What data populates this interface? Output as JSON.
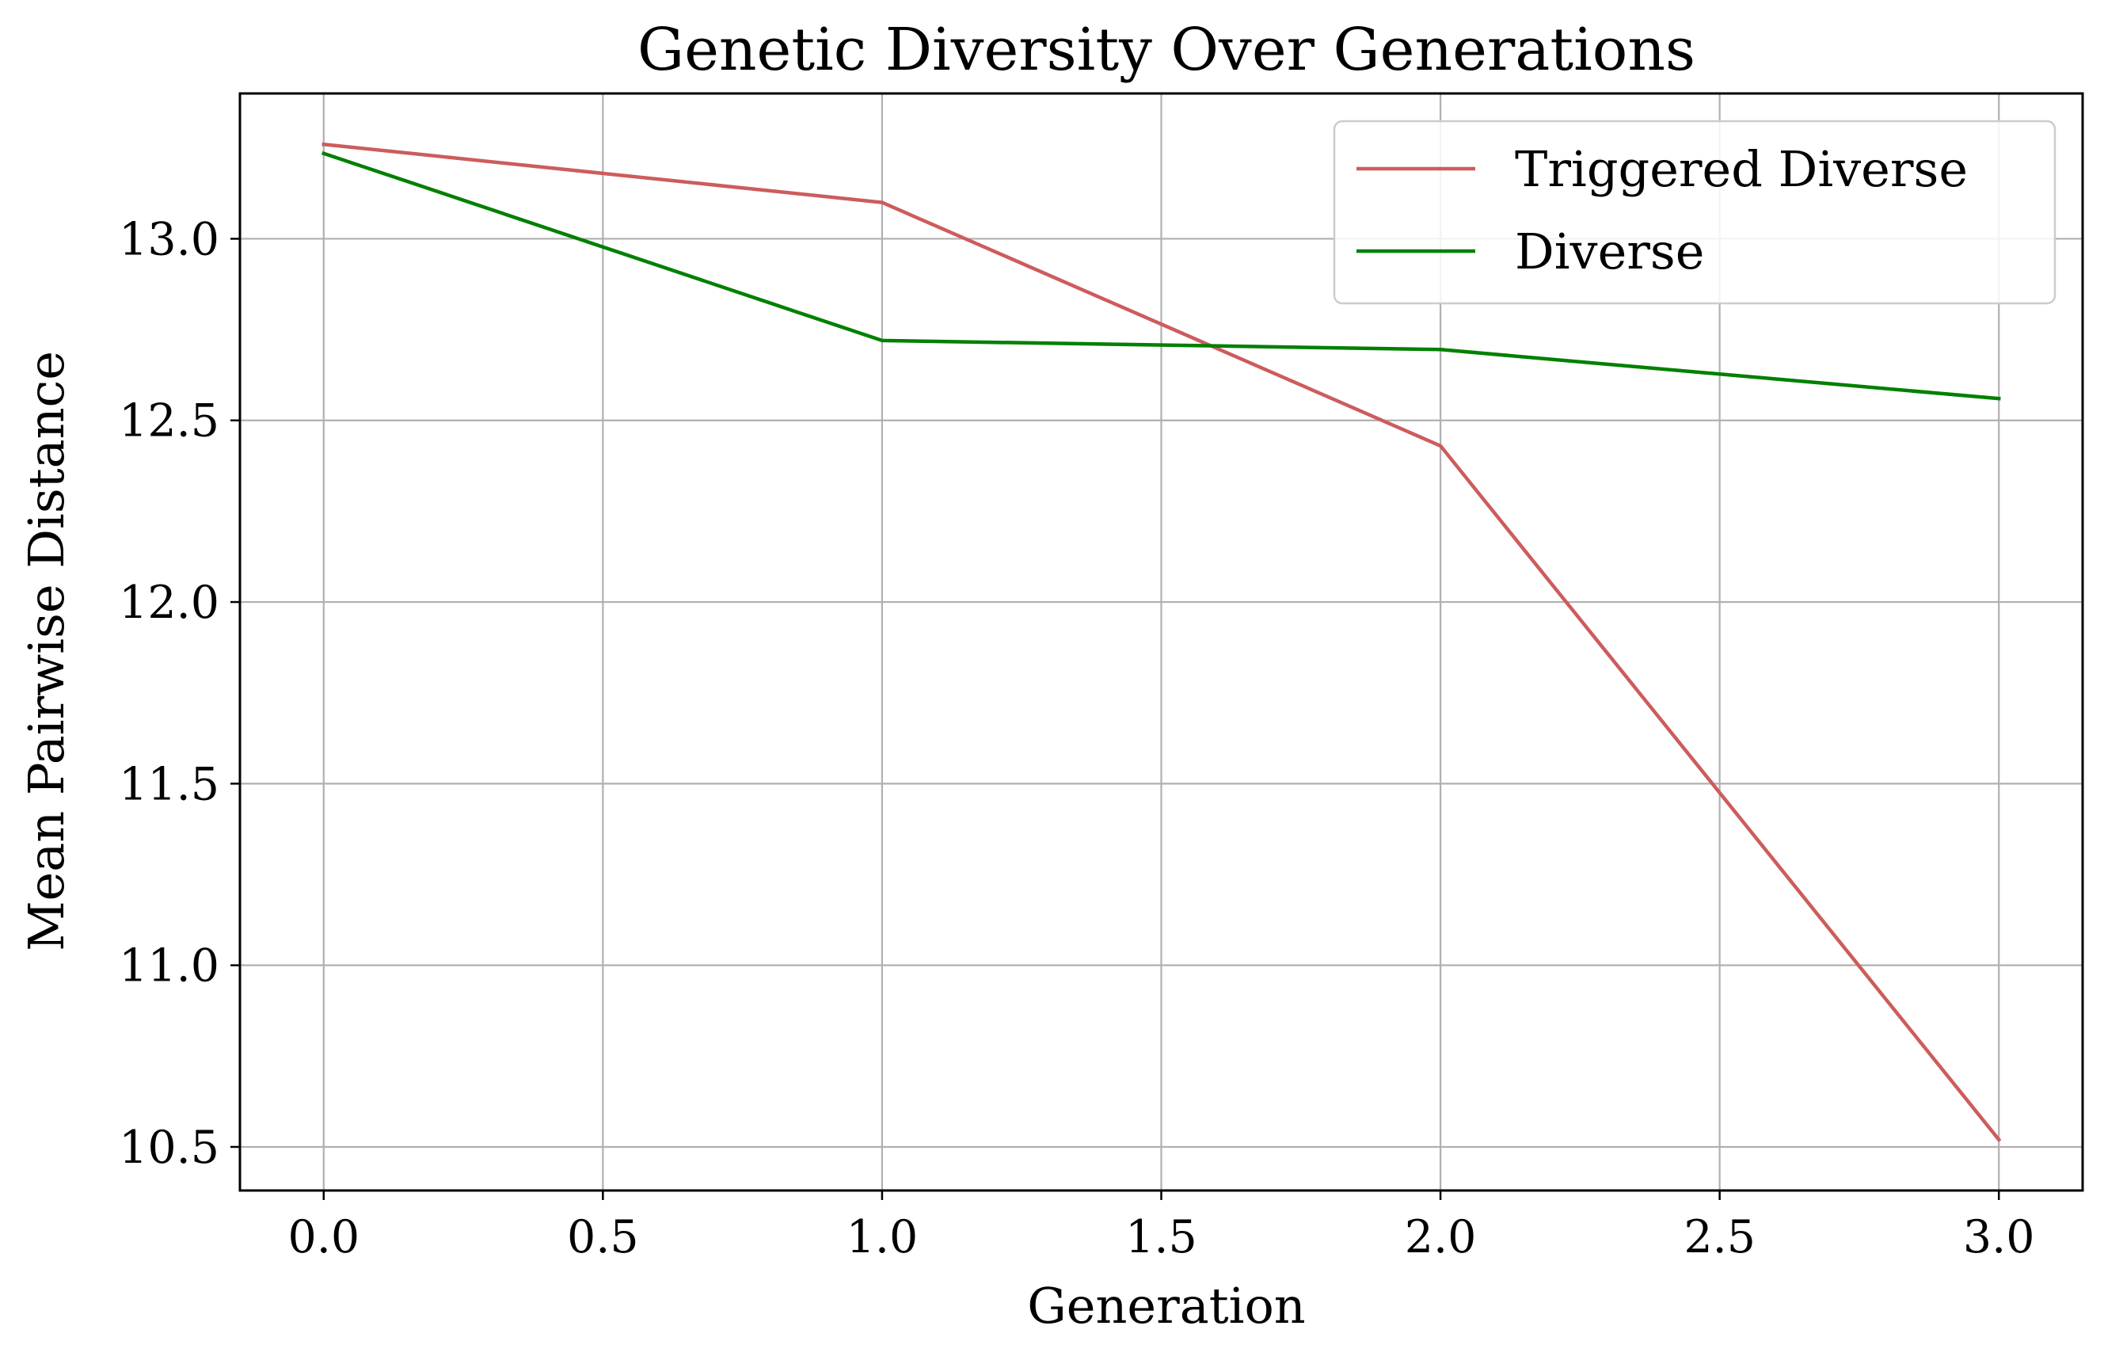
{
  "chart_data": {
    "type": "line",
    "title": "Genetic Diversity Over Generations",
    "xlabel": "Generation",
    "ylabel": "Mean Pairwise Distance",
    "x": [
      0,
      1,
      2,
      3
    ],
    "xlim": [
      -0.15,
      3.15
    ],
    "ylim": [
      10.38,
      13.4
    ],
    "xticks": [
      0.0,
      0.5,
      1.0,
      1.5,
      2.0,
      2.5,
      3.0
    ],
    "xtick_labels": [
      "0.0",
      "0.5",
      "1.0",
      "1.5",
      "2.0",
      "2.5",
      "3.0"
    ],
    "yticks": [
      10.5,
      11.0,
      11.5,
      12.0,
      12.5,
      13.0
    ],
    "ytick_labels": [
      "10.5",
      "11.0",
      "11.5",
      "12.0",
      "12.5",
      "13.0"
    ],
    "grid": true,
    "legend_position": "top-right",
    "series": [
      {
        "name": "Triggered Diverse",
        "color": "#cd5c5c",
        "values": [
          13.26,
          13.1,
          12.43,
          10.52
        ]
      },
      {
        "name": "Diverse",
        "color": "#008000",
        "values": [
          13.235,
          12.72,
          12.695,
          12.56
        ]
      }
    ]
  }
}
